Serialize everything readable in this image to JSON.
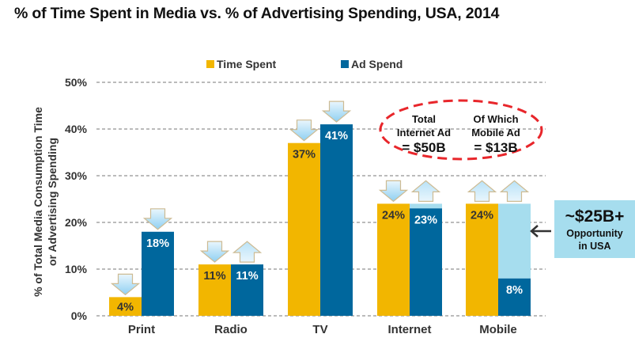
{
  "chart_data": {
    "type": "bar",
    "title": "% of Time Spent in Media vs. % of Advertising Spending, USA, 2014",
    "ylabel_lines": [
      "% of Total Media Consumption Time",
      "or Advertising Spending"
    ],
    "xlabel": "",
    "ylim": [
      0,
      50
    ],
    "yticks": [
      0,
      10,
      20,
      30,
      40,
      50
    ],
    "ytick_labels": [
      "0%",
      "10%",
      "20%",
      "30%",
      "40%",
      "50%"
    ],
    "grid": true,
    "legend_position": "top-center",
    "categories": [
      "Print",
      "Radio",
      "TV",
      "Internet",
      "Mobile"
    ],
    "series": [
      {
        "name": "Time Spent",
        "color": "#F2B600",
        "values": [
          4,
          11,
          37,
          24,
          24
        ],
        "labels": [
          "4%",
          "11%",
          "37%",
          "24%",
          "24%"
        ],
        "arrows": [
          "down",
          "down",
          "down",
          "down",
          "up"
        ]
      },
      {
        "name": "Ad Spend",
        "color": "#00679D",
        "values": [
          18,
          11,
          41,
          23,
          8
        ],
        "labels": [
          "18%",
          "11%",
          "41%",
          "23%",
          "8%"
        ],
        "arrows": [
          "down",
          "up",
          "down",
          "up",
          "up"
        ]
      }
    ],
    "gap_fill": {
      "color": "#A6DDEE",
      "note": "Ad Spend bars extended to Time Spent level for Internet and Mobile",
      "targets": [
        null,
        null,
        null,
        24,
        24
      ]
    },
    "annotations": {
      "ellipse": {
        "left_lines": [
          "Total",
          "Internet Ad",
          "= $50B"
        ],
        "right_lines": [
          "Of Which",
          "Mobile Ad",
          "= $13B"
        ],
        "color": "#E8262B"
      },
      "opportunity_box": {
        "headline": "~$25B+",
        "lines": [
          "Opportunity",
          "in USA"
        ],
        "color": "#A6DDEE"
      }
    }
  }
}
